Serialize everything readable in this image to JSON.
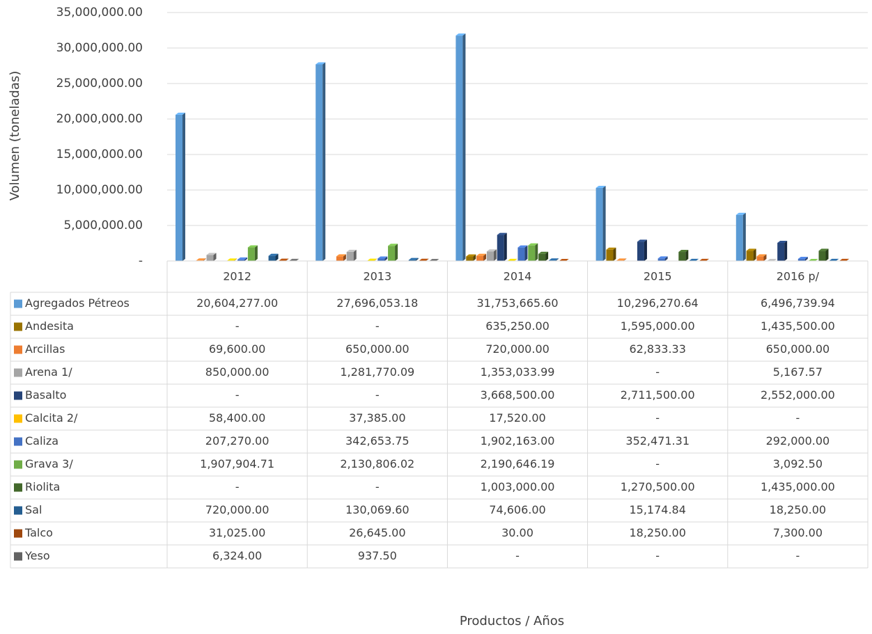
{
  "chart_data": {
    "type": "bar",
    "y_label": "Volumen (toneladas)",
    "x_label": "Productos / Años",
    "categories": [
      "2012",
      "2013",
      "2014",
      "2015",
      "2016 p/"
    ],
    "ylim": [
      0,
      35000000
    ],
    "yticks": [
      {
        "value": 0,
        "label": "-"
      },
      {
        "value": 5000000,
        "label": "5,000,000.00"
      },
      {
        "value": 10000000,
        "label": "10,000,000.00"
      },
      {
        "value": 15000000,
        "label": "15,000,000.00"
      },
      {
        "value": 20000000,
        "label": "20,000,000.00"
      },
      {
        "value": 25000000,
        "label": "25,000,000.00"
      },
      {
        "value": 30000000,
        "label": "30,000,000.00"
      },
      {
        "value": 35000000,
        "label": "35,000,000.00"
      }
    ],
    "grid": true,
    "series": [
      {
        "name": "Agregados Pétreos",
        "color": "#5b9bd5",
        "values": [
          20604277.0,
          27696053.18,
          31753665.6,
          10296270.64,
          6496739.94
        ],
        "value_labels": [
          "20,604,277.00",
          "27,696,053.18",
          "31,753,665.60",
          "10,296,270.64",
          "6,496,739.94"
        ]
      },
      {
        "name": "Andesita",
        "color": "#997300",
        "values": [
          null,
          null,
          635250.0,
          1595000.0,
          1435500.0
        ],
        "value_labels": [
          "-",
          "-",
          "635,250.00",
          "1,595,000.00",
          "1,435,500.00"
        ]
      },
      {
        "name": "Arcillas",
        "color": "#ed7d31",
        "values": [
          69600.0,
          650000.0,
          720000.0,
          62833.33,
          650000.0
        ],
        "value_labels": [
          "69,600.00",
          "650,000.00",
          "720,000.00",
          "62,833.33",
          "650,000.00"
        ]
      },
      {
        "name": "Arena 1/",
        "color": "#a5a5a5",
        "values": [
          850000.0,
          1281770.09,
          1353033.99,
          null,
          5167.57
        ],
        "value_labels": [
          "850,000.00",
          "1,281,770.09",
          "1,353,033.99",
          "-",
          "5,167.57"
        ]
      },
      {
        "name": "Basalto",
        "color": "#264478",
        "values": [
          null,
          null,
          3668500.0,
          2711500.0,
          2552000.0
        ],
        "value_labels": [
          "-",
          "-",
          "3,668,500.00",
          "2,711,500.00",
          "2,552,000.00"
        ]
      },
      {
        "name": "Calcita 2/",
        "color": "#ffc000",
        "values": [
          58400.0,
          37385.0,
          17520.0,
          null,
          null
        ],
        "value_labels": [
          "58,400.00",
          "37,385.00",
          "17,520.00",
          "-",
          "-"
        ]
      },
      {
        "name": "Caliza",
        "color": "#4472c4",
        "values": [
          207270.0,
          342653.75,
          1902163.0,
          352471.31,
          292000.0
        ],
        "value_labels": [
          "207,270.00",
          "342,653.75",
          "1,902,163.00",
          "352,471.31",
          "292,000.00"
        ]
      },
      {
        "name": "Grava 3/",
        "color": "#70ad47",
        "values": [
          1907904.71,
          2130806.02,
          2190646.19,
          null,
          3092.5
        ],
        "value_labels": [
          "1,907,904.71",
          "2,130,806.02",
          "2,190,646.19",
          "-",
          "3,092.50"
        ]
      },
      {
        "name": "Riolita",
        "color": "#43682b",
        "values": [
          null,
          null,
          1003000.0,
          1270500.0,
          1435000.0
        ],
        "value_labels": [
          "-",
          "-",
          "1,003,000.00",
          "1,270,500.00",
          "1,435,000.00"
        ]
      },
      {
        "name": "Sal",
        "color": "#255e91",
        "values": [
          720000.0,
          130069.6,
          74606.0,
          15174.84,
          18250.0
        ],
        "value_labels": [
          "720,000.00",
          "130,069.60",
          "74,606.00",
          "15,174.84",
          "18,250.00"
        ]
      },
      {
        "name": "Talco",
        "color": "#9e480e",
        "values": [
          31025.0,
          26645.0,
          30.0,
          18250.0,
          7300.0
        ],
        "value_labels": [
          "31,025.00",
          "26,645.00",
          "30.00",
          "18,250.00",
          "7,300.00"
        ]
      },
      {
        "name": "Yeso",
        "color": "#636363",
        "values": [
          6324.0,
          937.5,
          null,
          null,
          null
        ],
        "value_labels": [
          "6,324.00",
          "937.50",
          "-",
          "-",
          "-"
        ]
      }
    ]
  }
}
